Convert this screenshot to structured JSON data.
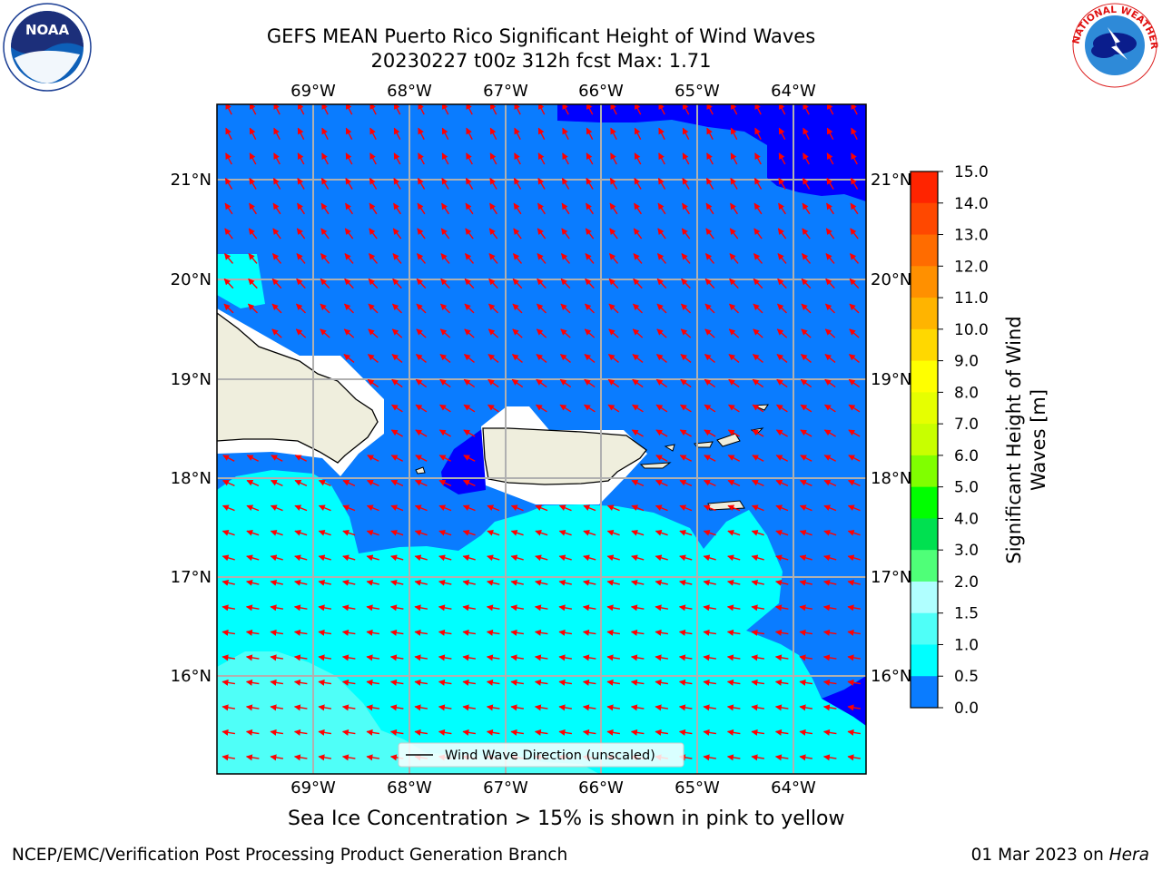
{
  "title": {
    "line1": "GEFS MEAN Puerto Rico Significant Height of Wind Waves",
    "line2": "20230227 t00z 312h fcst   Max: 1.71"
  },
  "map": {
    "lon_labels": [
      "69°W",
      "68°W",
      "67°W",
      "66°W",
      "65°W",
      "64°W"
    ],
    "lat_labels": [
      "21°N",
      "20°N",
      "19°N",
      "18°N",
      "17°N",
      "16°N"
    ],
    "lon_range": [
      -70.0,
      -63.25
    ],
    "lat_range": [
      15.0,
      21.75
    ],
    "legend_label": "Wind Wave Direction (unscaled)",
    "colors": {
      "land": "#efeedd",
      "band_0_0.5": "#0000ff",
      "band_0.5_1.0": "#0a7cff",
      "band_1.0_1.5": "#00ffff",
      "band_1.5_2.0": "#4ffff8",
      "arrow": "#ff0000",
      "grid": "#b0b0b0"
    }
  },
  "colorbar": {
    "title": "Significant Height of Wind Waves [m]",
    "title_line1": "Significant Height of Wind",
    "title_line2": "Waves [m]",
    "ticks": [
      "15.0",
      "14.0",
      "13.0",
      "12.0",
      "11.0",
      "10.0",
      "9.0",
      "8.0",
      "7.0",
      "6.0",
      "5.0",
      "4.0",
      "3.0",
      "2.0",
      "1.5",
      "1.0",
      "0.5",
      "0.0"
    ],
    "colors": [
      "#ff0000",
      "#ff2400",
      "#ff4800",
      "#ff6c00",
      "#ff9000",
      "#ffb400",
      "#ffd800",
      "#ffff00",
      "#e6ff00",
      "#c8ff00",
      "#80ff00",
      "#00ff00",
      "#00e050",
      "#4fff78",
      "#b0ffff",
      "#4ffff8",
      "#00ffff",
      "#0a7cff",
      "#0000ff"
    ]
  },
  "caption": "Sea Ice Concentration > 15% is shown in pink to yellow",
  "footer": {
    "left": "NCEP/EMC/Verification Post Processing Product Generation Branch",
    "right_prefix": "01 Mar 2023 on ",
    "right_host": "Hera"
  },
  "logos": {
    "noaa_text": "NOAA",
    "nws_text": "NATIONAL WEATHER SERVICE"
  }
}
